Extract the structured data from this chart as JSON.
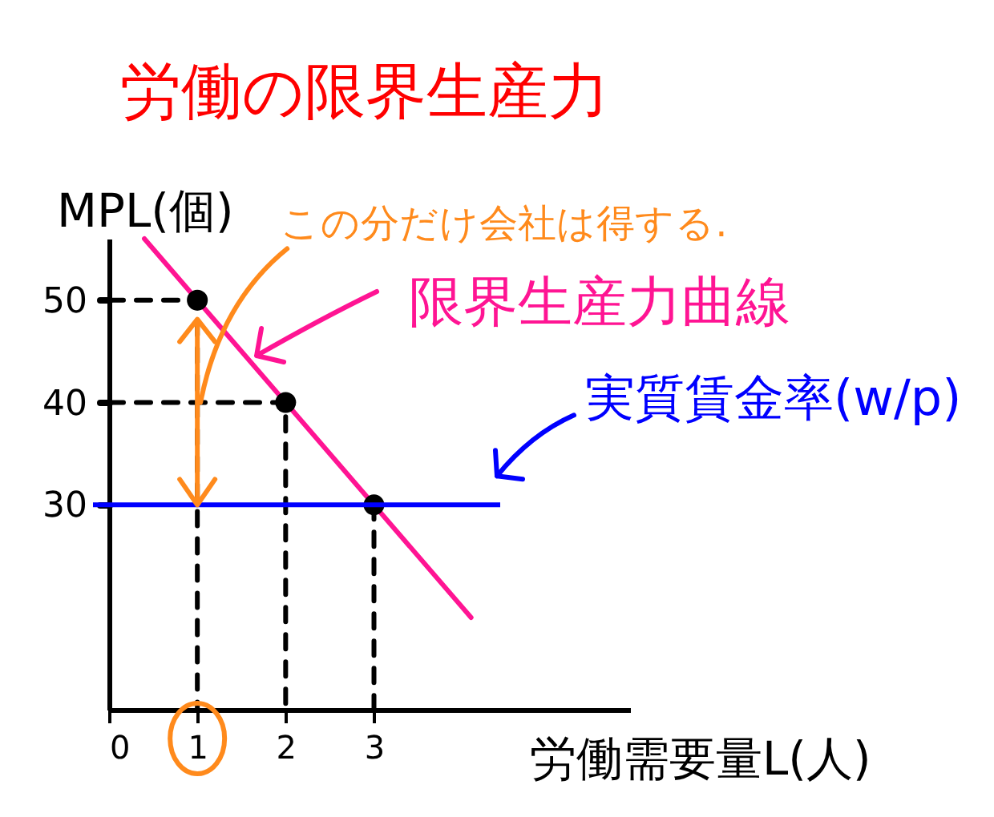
{
  "chart_data": {
    "type": "line",
    "title": "労働の限界生産力",
    "xlabel": "労働需要量L(人)",
    "ylabel": "MPL(個)",
    "xlim": [
      0,
      5.9
    ],
    "xticks": [
      0,
      1,
      2,
      3
    ],
    "ylim": [
      10,
      56
    ],
    "yticks": [
      30,
      40,
      50
    ],
    "series": [
      {
        "color": "#000000",
        "line_style": "dashed",
        "x": [
          0,
          1,
          1
        ],
        "values": [
          50,
          50,
          10
        ]
      },
      {
        "color": "#000000",
        "line_style": "dashed",
        "x": [
          0,
          2,
          2
        ],
        "values": [
          40,
          40,
          10
        ]
      },
      {
        "color": "#000000",
        "line_style": "dashed",
        "x": [
          3,
          3
        ],
        "values": [
          30,
          10
        ]
      },
      {
        "name": "限界生産力曲線",
        "color": "#ff1493",
        "x": [
          0.4,
          4.1
        ],
        "values": [
          56,
          19
        ]
      },
      {
        "type": "scatter",
        "color": "#000000",
        "marker": "circle",
        "x": [
          1,
          2,
          3
        ],
        "values": [
          50,
          40,
          30
        ]
      }
    ],
    "ref_lines": [
      {
        "axis": "y",
        "value": 30,
        "label": "実質賃金率(w/p)",
        "color": "#0000ff"
      }
    ],
    "annotations": [
      {
        "text": "この分だけ会社は得する.",
        "x": 1,
        "y": 40
      }
    ]
  }
}
